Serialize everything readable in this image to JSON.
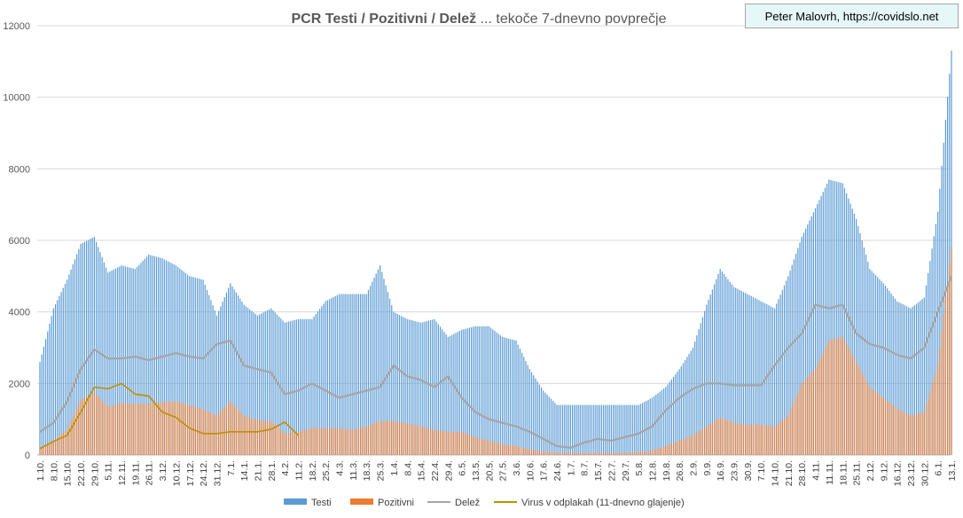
{
  "chart_data": {
    "type": "bar",
    "title_bold": "PCR Testi / Pozitivni / Delež",
    "title_rest": " ... tekoče 7-dnevno povprečje",
    "credit": "Peter Malovrh, https://covidslo.net",
    "ylim": [
      0,
      12000
    ],
    "yticks": [
      "0",
      "2000",
      "4000",
      "6000",
      "8000",
      "10000",
      "12000"
    ],
    "grid": "horizontal",
    "legend_position": "bottom",
    "x_labels": [
      "1.10.",
      "8.10.",
      "15.10.",
      "22.10.",
      "29.10.",
      "5.11.",
      "12.11.",
      "19.11.",
      "26.11.",
      "3.12.",
      "10.12.",
      "17.12.",
      "24.12.",
      "31.12.",
      "7.1.",
      "14.1.",
      "21.1.",
      "28.1.",
      "4.2.",
      "11.2.",
      "18.2.",
      "25.2.",
      "4.3.",
      "11.3.",
      "18.3.",
      "25.3.",
      "1.4.",
      "8.4.",
      "15.4.",
      "22.4.",
      "29.4.",
      "6.5.",
      "13.5.",
      "20.5.",
      "27.5.",
      "3.6.",
      "10.6.",
      "17.6.",
      "24.6.",
      "1.7.",
      "8.7.",
      "15.7.",
      "22.7.",
      "29.7.",
      "5.8.",
      "12.8.",
      "19.8.",
      "26.8.",
      "2.9.",
      "9.9.",
      "16.9.",
      "23.9.",
      "30.9.",
      "7.10.",
      "14.10.",
      "21.10.",
      "28.10.",
      "4.11.",
      "11.11.",
      "18.11.",
      "25.11.",
      "2.12.",
      "9.12.",
      "16.12.",
      "23.12.",
      "30.12.",
      "6.1.",
      "13.1."
    ],
    "series": [
      {
        "name": "Testi",
        "color": "#5b9bd5",
        "values": [
          2600,
          4100,
          4900,
          5900,
          6100,
          5100,
          5300,
          5200,
          5600,
          5500,
          5300,
          5000,
          4900,
          3900,
          4800,
          4200,
          3900,
          4100,
          3700,
          3800,
          3800,
          4300,
          4500,
          4500,
          4500,
          5300,
          4000,
          3800,
          3700,
          3800,
          3300,
          3500,
          3600,
          3600,
          3300,
          3200,
          2400,
          1800,
          1400,
          1400,
          1400,
          1400,
          1400,
          1400,
          1400,
          1600,
          1900,
          2400,
          3000,
          4200,
          5200,
          4700,
          4500,
          4300,
          4100,
          5000,
          6100,
          6900,
          7700,
          7600,
          6600,
          5200,
          4800,
          4300,
          4100,
          4400,
          6800,
          11300
        ]
      },
      {
        "name": "Pozitivni",
        "color": "#ed7d31",
        "values": [
          150,
          400,
          700,
          1550,
          1750,
          1350,
          1450,
          1430,
          1430,
          1480,
          1500,
          1400,
          1280,
          1100,
          1500,
          1100,
          970,
          950,
          600,
          650,
          750,
          750,
          750,
          700,
          800,
          950,
          950,
          880,
          800,
          700,
          650,
          650,
          500,
          400,
          300,
          250,
          160,
          100,
          70,
          60,
          60,
          60,
          60,
          60,
          80,
          120,
          250,
          400,
          550,
          800,
          1050,
          900,
          850,
          850,
          800,
          1100,
          2000,
          2400,
          3200,
          3300,
          2600,
          1900,
          1600,
          1300,
          1100,
          1200,
          2500,
          5800
        ]
      },
      {
        "name": "Delež",
        "color": "#a5a5a5",
        "values": [
          650,
          900,
          1500,
          2400,
          2950,
          2700,
          2700,
          2750,
          2650,
          2750,
          2850,
          2750,
          2700,
          3100,
          3200,
          2500,
          2400,
          2300,
          1700,
          1800,
          2000,
          1800,
          1600,
          1700,
          1800,
          1900,
          2500,
          2200,
          2100,
          1900,
          2200,
          1600,
          1200,
          1000,
          900,
          800,
          650,
          450,
          250,
          200,
          350,
          450,
          400,
          500,
          600,
          800,
          1250,
          1600,
          1850,
          2000,
          2000,
          1950,
          1950,
          1950,
          2500,
          3000,
          3400,
          4200,
          4100,
          4200,
          3400,
          3100,
          3000,
          2800,
          2700,
          3000,
          4000,
          5000
        ]
      },
      {
        "name": "Virus v odplakah (11-dnevno glajenje)",
        "color": "#bf9000",
        "values": [
          180,
          380,
          550,
          1200,
          1900,
          1850,
          2000,
          1700,
          1650,
          1200,
          1050,
          750,
          600,
          600,
          650,
          650,
          650,
          720,
          920,
          550
        ]
      }
    ]
  },
  "legend_items": [
    {
      "label": "Testi",
      "color": "#5b9bd5",
      "kind": "bar"
    },
    {
      "label": "Pozitivni",
      "color": "#ed7d31",
      "kind": "bar"
    },
    {
      "label": "Delež",
      "color": "#a5a5a5",
      "kind": "line"
    },
    {
      "label": "Virus v odplakah (11-dnevno glajenje)",
      "color": "#bf9000",
      "kind": "line"
    }
  ]
}
